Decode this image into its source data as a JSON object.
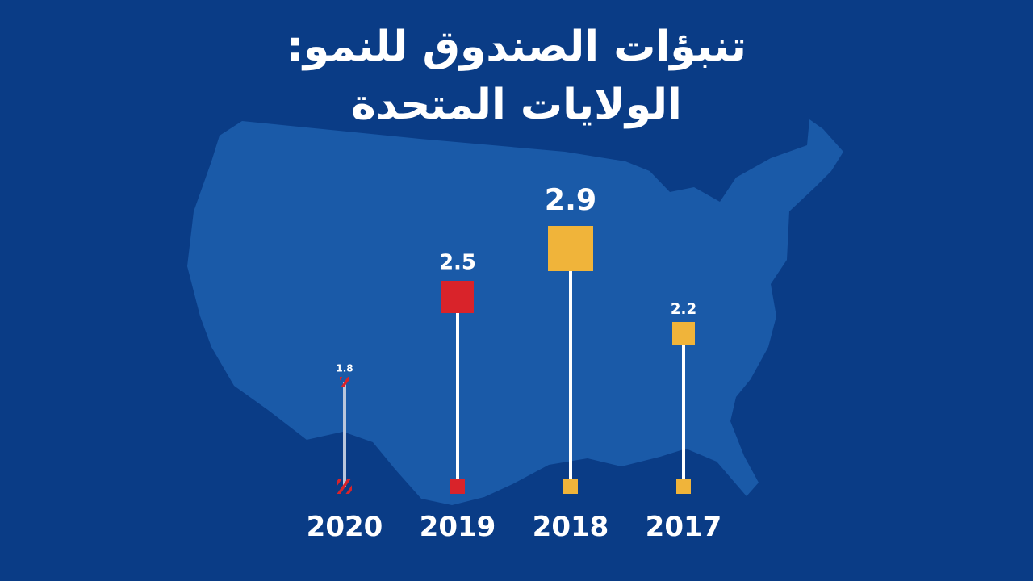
{
  "chart_data": {
    "type": "lollipop",
    "title_lines": [
      "تنبؤات الصندوق للنمو:",
      "الولايات المتحدة"
    ],
    "categories": [
      "2020",
      "2019",
      "2018",
      "2017"
    ],
    "values": [
      1.8,
      2.5,
      2.9,
      2.2
    ],
    "value_labels": [
      "1.8",
      "2.5",
      "2.9",
      "2.2"
    ],
    "xlabel": "",
    "ylabel": "",
    "grid": false,
    "legend": "none",
    "background_shape": "united-states-map"
  },
  "colors": {
    "background": "#0a3c86",
    "map": "#1a5aa8",
    "stem": "#ffffff",
    "projection_red": "#d9232a",
    "actual_yellow": "#f0b43a"
  },
  "series_style": [
    "hatched-red",
    "red",
    "yellow",
    "yellow"
  ]
}
